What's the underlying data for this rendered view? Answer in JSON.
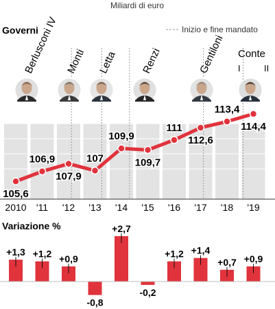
{
  "chart_data": [
    {
      "type": "line",
      "unit_note": "Miliardi di euro",
      "title": "Governi",
      "legend_label": "Inizio e fine mandato",
      "x": [
        "2010",
        "'11",
        "'12",
        "'13",
        "'14",
        "'15",
        "'16",
        "'17",
        "'18",
        "'19"
      ],
      "values": [
        105.6,
        106.9,
        107.9,
        107,
        109.9,
        109.7,
        111,
        112.6,
        113.4,
        114.4
      ],
      "value_labels": [
        "105,6",
        "106,9",
        "107,9",
        "107",
        "109,9",
        "109,7",
        "111",
        "112,6",
        "113,4",
        "114,4"
      ],
      "ylim": [
        104,
        116
      ],
      "line_color": "#e0333c",
      "bar_color": "#e3e3e3",
      "governments": [
        {
          "name": "Berlusconi IV",
          "start": 0
        },
        {
          "name": "Monti",
          "start": 1.9
        },
        {
          "name": "Letta",
          "start": 3.05
        },
        {
          "name": "Renzi",
          "start": 4.1
        },
        {
          "name": "Gentiloni",
          "start": 6.9
        },
        {
          "name": "Conte",
          "start": 8.4,
          "phases": [
            "I",
            "II"
          ]
        }
      ]
    },
    {
      "type": "bar",
      "title": "Variazione %",
      "categories": [
        "2010",
        "'11",
        "'12",
        "'13",
        "'14",
        "'15",
        "'16",
        "'17",
        "'18",
        "'19"
      ],
      "values": [
        1.3,
        1.2,
        0.9,
        -0.8,
        2.7,
        -0.2,
        1.2,
        1.4,
        0.7,
        0.9
      ],
      "value_labels": [
        "+1,3",
        "+1,2",
        "+0,9",
        "-0,8",
        "+2,7",
        "-0,2",
        "+1,2",
        "+1,4",
        "+0,7",
        "+0,9"
      ],
      "bar_color": "#e0333c"
    }
  ]
}
